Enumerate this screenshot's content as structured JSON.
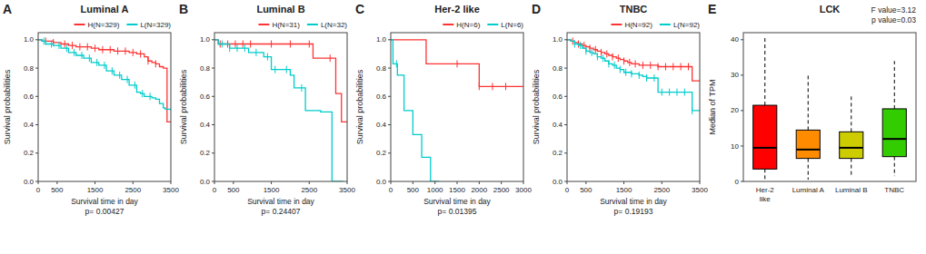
{
  "chart_data": [
    {
      "type": "step",
      "panel_label": "A",
      "title": "Luminal A",
      "xlabel": "Survival time in day\np= 0.00427",
      "ylabel": "Survival probabilities",
      "xlim": [
        0,
        3500
      ],
      "ylim": [
        0.0,
        1.05
      ],
      "xticks": [
        0,
        500,
        1500,
        2500,
        3500
      ],
      "yticks": [
        {
          "value": 0.0,
          "label": "0.0"
        },
        0.2,
        0.4,
        0.6,
        0.8,
        {
          "value": 1.0,
          "label": "1.0"
        }
      ],
      "legend": "upper right",
      "grid": false,
      "series": [
        {
          "name": "H(N=329)",
          "color": "#FF3333",
          "x": [
            0,
            50,
            100,
            200,
            400,
            600,
            800,
            1000,
            1200,
            1400,
            1600,
            1800,
            2000,
            2200,
            2400,
            2500,
            2600,
            2700,
            2800,
            2900,
            3000,
            3100,
            3200,
            3250,
            3300,
            3350,
            3400,
            3450,
            3500
          ],
          "values": [
            1.0,
            1.0,
            0.99,
            0.99,
            0.98,
            0.97,
            0.96,
            0.95,
            0.95,
            0.94,
            0.93,
            0.93,
            0.92,
            0.92,
            0.91,
            0.91,
            0.9,
            0.9,
            0.88,
            0.85,
            0.84,
            0.83,
            0.81,
            0.81,
            0.8,
            0.8,
            0.42,
            0.42,
            0.42
          ],
          "censored_x": [
            200,
            400,
            700,
            900,
            1100,
            1300,
            1500,
            1700,
            1900,
            2100,
            2300,
            2500,
            2700,
            2900,
            3100
          ]
        },
        {
          "name": "L(N=329)",
          "color": "#00CCCC",
          "x": [
            0,
            100,
            200,
            400,
            600,
            800,
            1000,
            1200,
            1400,
            1600,
            1800,
            2000,
            2200,
            2400,
            2600,
            2700,
            2800,
            2900,
            3000,
            3100,
            3200,
            3300,
            3350,
            3400,
            3500
          ],
          "values": [
            1.0,
            0.99,
            0.97,
            0.96,
            0.94,
            0.91,
            0.89,
            0.87,
            0.84,
            0.82,
            0.78,
            0.75,
            0.72,
            0.68,
            0.63,
            0.62,
            0.6,
            0.6,
            0.59,
            0.58,
            0.55,
            0.52,
            0.51,
            0.51,
            0.5
          ],
          "censored_x": [
            150,
            350,
            550,
            750,
            950,
            1150,
            1350,
            1550,
            1750,
            1950,
            2150,
            2350,
            2550,
            2750,
            2950
          ]
        }
      ]
    },
    {
      "type": "step",
      "panel_label": "B",
      "title": "Luminal B",
      "xlabel": "Survival time in day\np= 0.24407",
      "ylabel": "Survival probabilities",
      "xlim": [
        0,
        3500
      ],
      "ylim": [
        0.0,
        1.05
      ],
      "xticks": [
        0,
        500,
        1500,
        2500,
        3500
      ],
      "yticks": [
        {
          "value": 0.0,
          "label": "0.0"
        },
        0.2,
        0.4,
        0.6,
        0.8,
        {
          "value": 1.0,
          "label": "1.0"
        }
      ],
      "legend": "upper right",
      "grid": false,
      "series": [
        {
          "name": "H(N=31)",
          "color": "#FF3333",
          "x": [
            0,
            100,
            200,
            300,
            400,
            500,
            600,
            700,
            800,
            900,
            1000,
            1200,
            1500,
            1800,
            2000,
            2200,
            2400,
            2500,
            2600,
            2700,
            2800,
            2900,
            3000,
            3100,
            3200,
            3300,
            3350,
            3400,
            3500
          ],
          "values": [
            1.0,
            0.97,
            0.97,
            0.97,
            0.97,
            0.97,
            0.97,
            0.97,
            0.97,
            0.97,
            0.97,
            0.97,
            0.97,
            0.97,
            0.97,
            0.97,
            0.97,
            0.97,
            0.87,
            0.87,
            0.87,
            0.87,
            0.87,
            0.87,
            0.62,
            0.62,
            0.42,
            0.42,
            0.42
          ],
          "censored_x": [
            150,
            350,
            550,
            750,
            950,
            1500,
            2000,
            2500,
            3050
          ]
        },
        {
          "name": "L(N=32)",
          "color": "#00CCCC",
          "x": [
            0,
            100,
            200,
            300,
            400,
            500,
            600,
            700,
            900,
            1000,
            1200,
            1300,
            1500,
            1700,
            1800,
            2000,
            2100,
            2200,
            2400,
            2500,
            2600,
            2700,
            2750,
            2800,
            2900,
            3000,
            3050,
            3100,
            3400
          ],
          "values": [
            1.0,
            0.97,
            0.97,
            0.97,
            0.94,
            0.94,
            0.94,
            0.94,
            0.91,
            0.91,
            0.91,
            0.88,
            0.79,
            0.79,
            0.79,
            0.75,
            0.66,
            0.66,
            0.5,
            0.5,
            0.5,
            0.5,
            0.5,
            0.49,
            0.49,
            0.49,
            0.49,
            0.0,
            0.0
          ],
          "censored_x": [
            200,
            400,
            600,
            800,
            1100,
            1400,
            1600,
            1900,
            2300
          ]
        }
      ]
    },
    {
      "type": "step",
      "panel_label": "C",
      "title": "Her-2 like",
      "xlabel": "Survival time in day\np= 0.01395",
      "ylabel": "Survival probabilities",
      "xlim": [
        0,
        3000
      ],
      "ylim": [
        0.0,
        1.05
      ],
      "xticks": [
        0,
        500,
        1000,
        1500,
        2000,
        2500,
        3000
      ],
      "yticks": [
        {
          "value": 0.0,
          "label": "0.0"
        },
        0.2,
        0.4,
        0.6,
        0.8,
        {
          "value": 1.0,
          "label": "1.0"
        }
      ],
      "legend": "upper right",
      "grid": false,
      "series": [
        {
          "name": "H(N=6)",
          "color": "#FF3333",
          "x": [
            0,
            80,
            500,
            800,
            1000,
            1200,
            1500,
            1800,
            2000,
            2300,
            2400,
            2500,
            2700,
            3000
          ],
          "values": [
            1.0,
            1.0,
            1.0,
            0.83,
            0.83,
            0.83,
            0.83,
            0.83,
            0.67,
            0.67,
            0.67,
            0.67,
            0.67,
            0.67
          ],
          "censored_x": [
            1500,
            2000,
            2300,
            2600
          ]
        },
        {
          "name": "L(N=6)",
          "color": "#00CCCC",
          "x": [
            0,
            50,
            100,
            150,
            200,
            300,
            350,
            400,
            500,
            600,
            700,
            800,
            900,
            1000,
            1100
          ],
          "values": [
            1.0,
            0.83,
            0.83,
            0.75,
            0.75,
            0.5,
            0.5,
            0.5,
            0.33,
            0.33,
            0.17,
            0.17,
            0.0,
            0.0,
            0.0
          ],
          "censored_x": [
            130
          ]
        }
      ]
    },
    {
      "type": "step",
      "panel_label": "D",
      "title": "TNBC",
      "xlabel": "Survival time in day\np= 0.19193",
      "ylabel": "Survival probabilities",
      "xlim": [
        0,
        3500
      ],
      "ylim": [
        0.0,
        1.05
      ],
      "xticks": [
        0,
        500,
        1500,
        2500,
        3500
      ],
      "yticks": [
        {
          "value": 0.0,
          "label": "0.0"
        },
        0.2,
        0.4,
        0.6,
        0.8,
        {
          "value": 1.0,
          "label": "1.0"
        }
      ],
      "legend": "upper right",
      "grid": false,
      "series": [
        {
          "name": "H(N=92)",
          "color": "#FF3333",
          "x": [
            0,
            100,
            200,
            300,
            400,
            500,
            600,
            700,
            800,
            900,
            1000,
            1100,
            1200,
            1300,
            1400,
            1500,
            1600,
            1700,
            1800,
            1900,
            2000,
            2100,
            2200,
            2300,
            2400,
            2500,
            2600,
            2700,
            2800,
            2900,
            3000,
            3100,
            3200,
            3300,
            3400,
            3500
          ],
          "values": [
            1.0,
            0.99,
            0.98,
            0.97,
            0.96,
            0.95,
            0.94,
            0.93,
            0.92,
            0.91,
            0.9,
            0.89,
            0.88,
            0.87,
            0.86,
            0.85,
            0.84,
            0.83,
            0.83,
            0.82,
            0.82,
            0.82,
            0.82,
            0.82,
            0.81,
            0.81,
            0.81,
            0.81,
            0.81,
            0.81,
            0.81,
            0.81,
            0.81,
            0.71,
            0.71,
            0.71
          ],
          "censored_x": [
            150,
            300,
            450,
            600,
            750,
            900,
            1050,
            1200,
            1350,
            1500,
            1650,
            1800,
            2000,
            2200,
            2400,
            2600,
            2800,
            3000,
            3200
          ]
        },
        {
          "name": "L(N=92)",
          "color": "#00CCCC",
          "x": [
            0,
            100,
            200,
            300,
            400,
            500,
            600,
            700,
            800,
            900,
            1000,
            1100,
            1200,
            1300,
            1400,
            1500,
            1600,
            1700,
            1800,
            1900,
            2000,
            2100,
            2200,
            2300,
            2400,
            2500,
            2600,
            2700,
            2800,
            2900,
            3000,
            3100,
            3200,
            3300,
            3400,
            3500
          ],
          "values": [
            1.0,
            0.99,
            0.97,
            0.96,
            0.94,
            0.92,
            0.91,
            0.9,
            0.88,
            0.87,
            0.85,
            0.83,
            0.82,
            0.8,
            0.79,
            0.77,
            0.77,
            0.76,
            0.76,
            0.75,
            0.74,
            0.73,
            0.73,
            0.73,
            0.63,
            0.63,
            0.63,
            0.63,
            0.63,
            0.63,
            0.63,
            0.63,
            0.63,
            0.5,
            0.5,
            0.5
          ],
          "censored_x": [
            200,
            350,
            500,
            650,
            800,
            950,
            1100,
            1250,
            1400,
            1550,
            1700,
            1900,
            2100,
            2300,
            2500,
            2700,
            2900,
            3100,
            3300
          ]
        }
      ]
    },
    {
      "type": "box",
      "panel_label": "E",
      "title": "LCK",
      "ylabel": "Median of TPM",
      "annotation": "F value=3.12\np value=0.03",
      "categories": [
        "Her-2\nlike",
        "Luminal A",
        "Luminal B",
        "TNBC"
      ],
      "colors": [
        "#FF0000",
        "#FF8C00",
        "#CCCC00",
        "#33CC00"
      ],
      "ylim": [
        0,
        42
      ],
      "yticks": [
        0,
        10,
        20,
        30,
        40
      ],
      "grid": false,
      "boxes": [
        {
          "q1": 3.5,
          "median": 9.5,
          "q3": 21.5,
          "whisker_low": 0.5,
          "whisker_high": 41.0
        },
        {
          "q1": 6.5,
          "median": 9.0,
          "q3": 14.5,
          "whisker_low": 0.5,
          "whisker_high": 30.0
        },
        {
          "q1": 6.5,
          "median": 9.5,
          "q3": 14.0,
          "whisker_low": 1.5,
          "whisker_high": 24.0
        },
        {
          "q1": 7.0,
          "median": 12.0,
          "q3": 20.5,
          "whisker_low": 1.5,
          "whisker_high": 34.0
        }
      ]
    }
  ]
}
